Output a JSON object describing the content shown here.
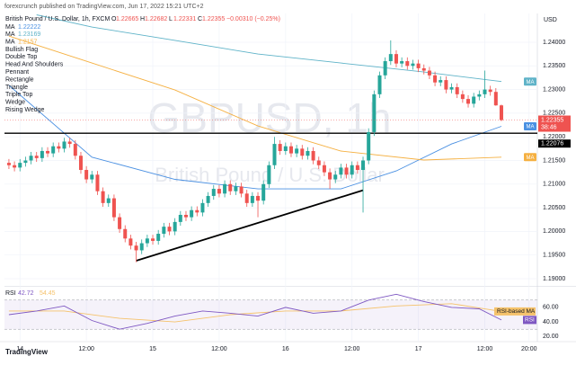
{
  "header": "forexcrunch published on TradingView.com, Jun 17, 2022 15:21 UTC+2",
  "footer": "TradingView",
  "chart_data": {
    "type": "candlestick",
    "symbol": "British Pound / U.S. Dollar, 1h, FXCM",
    "ohlc_labels": [
      "O",
      "H",
      "L",
      "C"
    ],
    "change": "−0.00310 (−0.25%)",
    "watermark": "GBPUSD, 1h",
    "watermark_sub": "British Pound / U.S. Dollar",
    "currency": "USD",
    "countdown": "38:46",
    "patterns": [
      "Bullish Flag",
      "Double Top",
      "Head And Shoulders",
      "Pennant",
      "Rectangle",
      "Triangle",
      "Triple Top",
      "Wedge",
      "Rising Wedge"
    ],
    "up_color": "#26a69a",
    "down_color": "#ef5350",
    "candles": [
      [
        1.2145,
        1.2153,
        1.2132,
        1.214
      ],
      [
        1.214,
        1.2148,
        1.2127,
        1.2135
      ],
      [
        1.2135,
        1.2153,
        1.2127,
        1.2145
      ],
      [
        1.2145,
        1.2158,
        1.2137,
        1.215
      ],
      [
        1.215,
        1.2168,
        1.2142,
        1.216
      ],
      [
        1.216,
        1.2168,
        1.2147,
        1.2155
      ],
      [
        1.2155,
        1.2178,
        1.2147,
        1.217
      ],
      [
        1.217,
        1.2178,
        1.2157,
        1.2165
      ],
      [
        1.2165,
        1.2188,
        1.2157,
        1.218
      ],
      [
        1.218,
        1.2188,
        1.2167,
        1.2175
      ],
      [
        1.2175,
        1.2198,
        1.2167,
        1.219
      ],
      [
        1.219,
        1.2198,
        1.2177,
        1.2185
      ],
      [
        1.2185,
        1.2193,
        1.2152,
        1.216
      ],
      [
        1.216,
        1.2168,
        1.2122,
        1.213
      ],
      [
        1.213,
        1.2138,
        1.2102,
        1.211
      ],
      [
        1.211,
        1.2128,
        1.2102,
        1.212
      ],
      [
        1.212,
        1.2128,
        1.2077,
        1.2085
      ],
      [
        1.2085,
        1.2093,
        1.2052,
        1.206
      ],
      [
        1.206,
        1.2078,
        1.2052,
        1.207
      ],
      [
        1.207,
        1.2078,
        1.2022,
        1.203
      ],
      [
        1.203,
        1.2038,
        1.1997,
        1.2005
      ],
      [
        1.2005,
        1.2013,
        1.1977,
        1.1985
      ],
      [
        1.1985,
        1.1993,
        1.1962,
        1.197
      ],
      [
        1.197,
        1.1978,
        1.1935,
        1.196
      ],
      [
        1.196,
        1.1983,
        1.1952,
        1.1975
      ],
      [
        1.1975,
        1.1993,
        1.1967,
        1.1985
      ],
      [
        1.1985,
        1.1993,
        1.1972,
        1.198
      ],
      [
        1.198,
        1.2003,
        1.1972,
        1.1995
      ],
      [
        1.1995,
        1.2018,
        1.1987,
        1.201
      ],
      [
        1.201,
        1.2018,
        1.1992,
        1.2
      ],
      [
        1.2,
        1.2028,
        1.1992,
        1.202
      ],
      [
        1.202,
        1.2043,
        1.2012,
        1.2035
      ],
      [
        1.2035,
        1.2043,
        1.2022,
        1.203
      ],
      [
        1.203,
        1.2053,
        1.2022,
        1.2045
      ],
      [
        1.2045,
        1.2053,
        1.2032,
        1.204
      ],
      [
        1.204,
        1.2068,
        1.2032,
        1.206
      ],
      [
        1.206,
        1.2083,
        1.2052,
        1.2075
      ],
      [
        1.2075,
        1.2098,
        1.2067,
        1.209
      ],
      [
        1.209,
        1.2098,
        1.2072,
        1.208
      ],
      [
        1.208,
        1.2108,
        1.2072,
        1.21
      ],
      [
        1.21,
        1.2108,
        1.2077,
        1.2085
      ],
      [
        1.2085,
        1.2103,
        1.2077,
        1.2095
      ],
      [
        1.2095,
        1.2103,
        1.2072,
        1.208
      ],
      [
        1.208,
        1.2088,
        1.2052,
        1.206
      ],
      [
        1.206,
        1.2083,
        1.2052,
        1.2075
      ],
      [
        1.2075,
        1.2083,
        1.203,
        1.2065
      ],
      [
        1.2065,
        1.2108,
        1.2057,
        1.21
      ],
      [
        1.21,
        1.2148,
        1.2092,
        1.214
      ],
      [
        1.214,
        1.22,
        1.2132,
        1.2185
      ],
      [
        1.2185,
        1.2193,
        1.2162,
        1.217
      ],
      [
        1.217,
        1.2188,
        1.2162,
        1.218
      ],
      [
        1.218,
        1.2188,
        1.2157,
        1.2165
      ],
      [
        1.2165,
        1.2183,
        1.2157,
        1.2175
      ],
      [
        1.2175,
        1.2183,
        1.2152,
        1.216
      ],
      [
        1.216,
        1.2178,
        1.2152,
        1.217
      ],
      [
        1.217,
        1.2178,
        1.2142,
        1.215
      ],
      [
        1.215,
        1.2158,
        1.2132,
        1.214
      ],
      [
        1.214,
        1.2148,
        1.2117,
        1.2125
      ],
      [
        1.2125,
        1.2133,
        1.209,
        1.211
      ],
      [
        1.211,
        1.2128,
        1.2102,
        1.212
      ],
      [
        1.212,
        1.2143,
        1.2112,
        1.2135
      ],
      [
        1.2135,
        1.2143,
        1.2112,
        1.212
      ],
      [
        1.212,
        1.2148,
        1.2112,
        1.214
      ],
      [
        1.214,
        1.2148,
        1.2122,
        1.213
      ],
      [
        1.213,
        1.2158,
        1.204,
        1.215
      ],
      [
        1.215,
        1.2218,
        1.2142,
        1.221
      ],
      [
        1.221,
        1.2298,
        1.2202,
        1.229
      ],
      [
        1.229,
        1.2338,
        1.2282,
        1.233
      ],
      [
        1.233,
        1.2368,
        1.2322,
        1.236
      ],
      [
        1.236,
        1.2404,
        1.2352,
        1.2375
      ],
      [
        1.2375,
        1.2383,
        1.2347,
        1.2355
      ],
      [
        1.2355,
        1.2368,
        1.2347,
        1.236
      ],
      [
        1.236,
        1.2368,
        1.2342,
        1.235
      ],
      [
        1.235,
        1.2363,
        1.2342,
        1.2355
      ],
      [
        1.2355,
        1.2363,
        1.2337,
        1.2345
      ],
      [
        1.2345,
        1.2353,
        1.2332,
        1.234
      ],
      [
        1.234,
        1.2348,
        1.2322,
        1.233
      ],
      [
        1.233,
        1.2338,
        1.2307,
        1.2315
      ],
      [
        1.2315,
        1.2328,
        1.2307,
        1.232
      ],
      [
        1.232,
        1.2328,
        1.2292,
        1.23
      ],
      [
        1.23,
        1.2313,
        1.2292,
        1.2305
      ],
      [
        1.2305,
        1.2313,
        1.2282,
        1.229
      ],
      [
        1.229,
        1.2298,
        1.2272,
        1.228
      ],
      [
        1.228,
        1.2288,
        1.2262,
        1.227
      ],
      [
        1.227,
        1.2293,
        1.2262,
        1.2285
      ],
      [
        1.2285,
        1.2298,
        1.2277,
        1.229
      ],
      [
        1.229,
        1.234,
        1.2282,
        1.23
      ],
      [
        1.23,
        1.2308,
        1.2287,
        1.2295
      ],
      [
        1.2295,
        1.2303,
        1.22657,
        1.22665
      ],
      [
        1.22665,
        1.22682,
        1.22331,
        1.22355
      ]
    ],
    "moving_averages": [
      {
        "name": "MA",
        "color": "#4a90e2",
        "x": [
          0,
          15,
          30,
          45,
          60,
          70,
          80,
          89
        ],
        "values": [
          1.2309,
          1.2157,
          1.211,
          1.209,
          1.209,
          1.2128,
          1.2185,
          1.22222
        ]
      },
      {
        "name": "MA",
        "color": "#5fb3c8",
        "x": [
          5,
          15,
          30,
          45,
          60,
          75,
          89
        ],
        "values": [
          1.2458,
          1.2432,
          1.2404,
          1.2375,
          1.2356,
          1.2337,
          1.23169
        ]
      },
      {
        "name": "MA",
        "color": "#f5b041",
        "x": [
          0,
          15,
          30,
          45,
          60,
          75,
          89
        ],
        "values": [
          1.2413,
          1.2356,
          1.2299,
          1.2223,
          1.217,
          1.2151,
          1.2157
        ]
      }
    ],
    "hline": 1.22076,
    "trendline": {
      "x": [
        23,
        64
      ],
      "values": [
        1.1938,
        1.2087
      ]
    },
    "xlim": [
      -0.8,
      95.5
    ],
    "xticks": [
      {
        "value": 2,
        "label": "14"
      },
      {
        "value": 14,
        "label": "12:00"
      },
      {
        "value": 26,
        "label": "15"
      },
      {
        "value": 38,
        "label": "12:00"
      },
      {
        "value": 50,
        "label": "16"
      },
      {
        "value": 62,
        "label": "12:00"
      },
      {
        "value": 74,
        "label": "17"
      },
      {
        "value": 86,
        "label": "12:00"
      },
      {
        "value": 94,
        "label": "20:00"
      }
    ],
    "ylim": [
      1.18848,
      1.24608
    ],
    "yticks": [
      {
        "value": 1.19,
        "label": "1.19000"
      },
      {
        "value": 1.195,
        "label": "1.19500"
      },
      {
        "value": 1.2,
        "label": "1.20000"
      },
      {
        "value": 1.205,
        "label": "1.20500"
      },
      {
        "value": 1.21,
        "label": "1.21000"
      },
      {
        "value": 1.215,
        "label": "1.21500"
      },
      {
        "value": 1.22,
        "label": "1.22000"
      },
      {
        "value": 1.225,
        "label": "1.22500"
      },
      {
        "value": 1.23,
        "label": "1.23000"
      },
      {
        "value": 1.235,
        "label": "1.23500"
      },
      {
        "value": 1.24,
        "label": "1.24000"
      }
    ],
    "grid": true,
    "rsi": {
      "name": "RSI",
      "color": "#7e57c2",
      "x": [
        0,
        5,
        10,
        15,
        20,
        25,
        30,
        35,
        40,
        45,
        50,
        55,
        60,
        65,
        70,
        75,
        80,
        85,
        89
      ],
      "values": [
        50,
        55,
        62,
        42,
        30,
        38,
        48,
        55,
        52,
        48,
        60,
        52,
        55,
        70,
        78,
        68,
        60,
        58,
        42.72
      ]
    },
    "rsi_ma": {
      "name": "RSI-based MA",
      "color": "#f5c26b",
      "x": [
        0,
        10,
        20,
        30,
        40,
        50,
        60,
        70,
        80,
        89
      ],
      "values": [
        55,
        55,
        45,
        40,
        50,
        55,
        55,
        62,
        65,
        54.45
      ]
    },
    "rsi_band": [
      30,
      70
    ],
    "rsi_ylim": [
      13,
      87
    ],
    "rsi_yticks": [
      {
        "value": 20,
        "label": "20.00"
      },
      {
        "value": 40,
        "label": "40.00"
      },
      {
        "value": 60,
        "label": "60.00"
      }
    ]
  }
}
